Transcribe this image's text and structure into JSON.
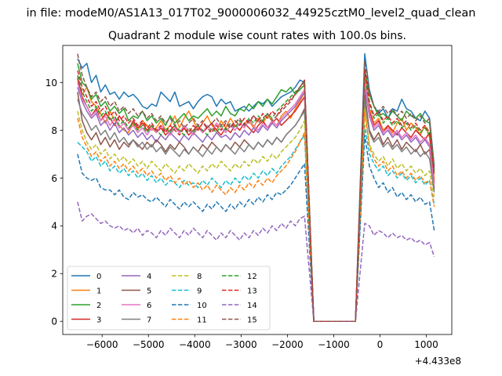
{
  "figure": {
    "suptitle": "in file: modeM0/AS1A13_017T02_9000006032_44925cztM0_level2_quad_clean",
    "title": "Quadrant 2 module wise count rates with 100.0s bins.",
    "offset_text": "+4.433e8"
  },
  "chart_data": {
    "type": "line",
    "title": "Quadrant 2 module wise count rates with 100.0s bins.",
    "xlabel": "",
    "ylabel": "",
    "x_offset": 443300000,
    "xlim": [
      -6850,
      1550
    ],
    "ylim": [
      -0.55,
      11.55
    ],
    "xticks": [
      -6000,
      -5000,
      -4000,
      -3000,
      -2000,
      -1000,
      0,
      1000
    ],
    "xtick_labels": [
      "−6000",
      "−5000",
      "−4000",
      "−3000",
      "−2000",
      "−1000",
      "0",
      "1000"
    ],
    "yticks": [
      0,
      2,
      4,
      6,
      8,
      10
    ],
    "ytick_labels": [
      "0",
      "2",
      "4",
      "6",
      "8",
      "10"
    ],
    "grid": false,
    "legend": {
      "location": "lower-left",
      "columns": 4
    },
    "segments": {
      "first": {
        "start": -6530,
        "end": -1630,
        "step": 100
      },
      "gap_fall": {
        "from": -1630,
        "to": -1430
      },
      "gap_zero": {
        "start": -1430,
        "end": -530
      },
      "gap_rise": {
        "from": -530,
        "to": -330
      },
      "second": {
        "start": -330,
        "end": 1170,
        "step": 100
      }
    },
    "series": [
      {
        "name": "0",
        "color": "#1f77b4",
        "dashed": false,
        "first": [
          11.0,
          10.6,
          10.8,
          10.0,
          10.3,
          9.6,
          9.9,
          9.5,
          9.6,
          9.3,
          9.6,
          9.4,
          9.5,
          9.3,
          9.0,
          8.9,
          9.1,
          9.0,
          9.6,
          9.4,
          9.2,
          9.6,
          9.0,
          9.1,
          9.2,
          8.9,
          9.2,
          9.4,
          9.5,
          9.4,
          9.0,
          9.3,
          9.1,
          9.2,
          8.8,
          8.9,
          9.0,
          8.8,
          9.0,
          9.2,
          9.1,
          9.3,
          9.0,
          9.2,
          9.4,
          9.5,
          9.6,
          9.8,
          10.1,
          10.0
        ],
        "second": [
          11.2,
          9.7,
          9.0,
          8.7,
          8.9,
          8.5,
          8.9,
          8.8,
          9.3,
          8.9,
          8.8,
          8.5,
          8.4,
          8.8,
          8.5,
          6.5
        ]
      },
      {
        "name": "1",
        "color": "#ff7f0e",
        "dashed": false,
        "first": [
          10.1,
          9.5,
          9.8,
          9.2,
          9.0,
          8.7,
          8.3,
          8.8,
          8.4,
          8.2,
          8.0,
          7.9,
          8.3,
          8.0,
          8.4,
          8.2,
          8.0,
          8.1,
          8.4,
          8.0,
          8.2,
          8.6,
          8.1,
          8.5,
          8.8,
          8.4,
          8.0,
          8.3,
          8.6,
          8.2,
          8.0,
          8.4,
          8.1,
          8.5,
          8.2,
          8.0,
          8.3,
          8.4,
          8.1,
          8.5,
          8.3,
          8.6,
          8.4,
          8.2,
          8.6,
          8.8,
          8.5,
          8.9,
          9.2,
          9.6
        ],
        "second": [
          10.2,
          8.9,
          8.3,
          8.5,
          8.0,
          8.2,
          7.9,
          8.3,
          8.5,
          8.0,
          8.3,
          8.1,
          7.8,
          8.2,
          7.7,
          5.9
        ]
      },
      {
        "name": "2",
        "color": "#2ca02c",
        "dashed": false,
        "first": [
          10.8,
          10.0,
          9.8,
          9.3,
          9.5,
          9.0,
          9.2,
          8.8,
          9.0,
          8.7,
          8.9,
          8.4,
          8.6,
          8.5,
          8.8,
          8.4,
          8.6,
          8.3,
          8.5,
          8.2,
          8.6,
          8.3,
          8.5,
          8.7,
          8.4,
          8.6,
          8.5,
          8.7,
          8.9,
          8.6,
          8.8,
          8.6,
          9.0,
          8.7,
          8.6,
          8.9,
          8.8,
          9.1,
          8.9,
          9.2,
          9.0,
          9.3,
          9.1,
          9.4,
          9.7,
          9.6,
          9.8,
          9.5,
          9.7,
          9.9
        ],
        "second": [
          10.5,
          9.5,
          9.0,
          8.6,
          8.7,
          8.5,
          8.8,
          8.6,
          8.4,
          8.8,
          8.6,
          8.5,
          8.7,
          8.4,
          8.3,
          6.3
        ]
      },
      {
        "name": "3",
        "color": "#d62728",
        "dashed": false,
        "first": [
          10.2,
          9.4,
          9.0,
          8.6,
          8.9,
          8.4,
          8.7,
          8.5,
          8.2,
          8.6,
          8.3,
          8.0,
          8.4,
          8.1,
          8.3,
          8.0,
          8.2,
          7.9,
          8.1,
          7.8,
          8.0,
          8.2,
          7.9,
          8.1,
          7.8,
          8.0,
          8.2,
          7.9,
          8.1,
          8.3,
          8.0,
          7.8,
          8.1,
          7.9,
          8.2,
          8.0,
          8.3,
          8.1,
          7.9,
          8.2,
          8.4,
          8.1,
          8.3,
          8.5,
          8.2,
          8.4,
          8.6,
          8.8,
          9.1,
          9.4
        ],
        "second": [
          10.0,
          8.8,
          8.2,
          8.4,
          7.9,
          8.2,
          8.0,
          7.8,
          8.1,
          7.9,
          7.7,
          8.0,
          7.8,
          7.6,
          7.9,
          5.8
        ]
      },
      {
        "name": "4",
        "color": "#9467bd",
        "dashed": false,
        "first": [
          9.8,
          9.2,
          8.8,
          8.5,
          8.7,
          8.2,
          8.4,
          8.0,
          8.3,
          7.9,
          8.1,
          7.8,
          8.0,
          7.7,
          7.9,
          7.6,
          7.8,
          7.5,
          7.8,
          7.6,
          7.9,
          7.7,
          7.5,
          7.8,
          7.6,
          7.9,
          7.7,
          7.5,
          7.8,
          7.6,
          7.9,
          7.7,
          7.8,
          7.6,
          7.9,
          7.7,
          8.0,
          7.8,
          8.1,
          7.9,
          8.2,
          8.0,
          8.3,
          8.1,
          8.4,
          8.6,
          8.8,
          9.0,
          9.3,
          9.6
        ],
        "second": [
          9.8,
          8.6,
          8.0,
          8.2,
          7.8,
          8.0,
          7.7,
          7.9,
          7.6,
          7.8,
          7.5,
          7.7,
          7.4,
          7.6,
          7.3,
          5.6
        ]
      },
      {
        "name": "5",
        "color": "#8c564b",
        "dashed": false,
        "first": [
          9.6,
          8.4,
          7.9,
          7.6,
          7.9,
          7.4,
          7.7,
          7.3,
          7.6,
          7.2,
          7.5,
          7.3,
          7.6,
          7.4,
          7.2,
          7.5,
          7.3,
          7.6,
          7.4,
          7.1,
          7.4,
          7.2,
          7.5,
          7.3,
          7.0,
          7.3,
          7.1,
          7.4,
          7.2,
          7.5,
          7.3,
          7.1,
          7.4,
          7.2,
          7.5,
          7.3,
          7.6,
          7.4,
          7.2,
          7.5,
          7.3,
          7.6,
          7.4,
          7.7,
          7.5,
          7.8,
          8.0,
          8.2,
          8.5,
          8.9
        ],
        "second": [
          9.5,
          8.0,
          7.6,
          7.9,
          7.4,
          7.7,
          7.3,
          7.6,
          7.2,
          7.5,
          7.3,
          7.1,
          7.4,
          7.0,
          7.2,
          5.5
        ]
      },
      {
        "name": "6",
        "color": "#e377c2",
        "dashed": false,
        "first": [
          10.0,
          9.3,
          9.0,
          8.6,
          8.8,
          8.4,
          8.6,
          8.2,
          8.5,
          8.1,
          8.3,
          8.0,
          8.2,
          7.9,
          8.1,
          7.8,
          8.1,
          7.9,
          8.2,
          8.0,
          7.8,
          8.1,
          7.9,
          8.2,
          8.0,
          7.8,
          8.1,
          7.9,
          8.2,
          8.0,
          8.3,
          8.1,
          7.9,
          8.2,
          8.0,
          8.3,
          8.1,
          8.4,
          8.2,
          8.0,
          8.3,
          8.1,
          8.4,
          8.2,
          8.5,
          8.7,
          8.9,
          9.1,
          9.4,
          9.7
        ],
        "second": [
          10.1,
          8.7,
          8.1,
          8.3,
          7.9,
          8.1,
          7.8,
          8.0,
          7.7,
          7.9,
          7.6,
          7.8,
          7.5,
          7.7,
          7.4,
          5.7
        ]
      },
      {
        "name": "7",
        "color": "#7f7f7f",
        "dashed": false,
        "first": [
          9.3,
          8.7,
          8.4,
          8.0,
          8.2,
          7.8,
          8.0,
          7.6,
          7.9,
          7.5,
          7.7,
          7.4,
          7.6,
          7.3,
          7.5,
          7.2,
          7.4,
          7.1,
          7.3,
          7.0,
          7.3,
          7.1,
          6.9,
          7.2,
          7.0,
          7.3,
          7.1,
          6.9,
          7.2,
          7.0,
          7.3,
          7.1,
          7.4,
          7.2,
          7.0,
          7.3,
          7.1,
          7.4,
          7.2,
          7.5,
          7.3,
          7.6,
          7.4,
          7.7,
          7.5,
          7.8,
          8.0,
          8.2,
          8.5,
          8.8
        ],
        "second": [
          9.2,
          7.9,
          7.5,
          7.7,
          7.3,
          7.5,
          7.2,
          7.4,
          7.1,
          7.3,
          7.0,
          7.2,
          6.9,
          7.1,
          6.8,
          5.4
        ]
      },
      {
        "name": "8",
        "color": "#bcbd22",
        "dashed": true,
        "first": [
          8.8,
          8.0,
          7.5,
          7.2,
          7.4,
          7.0,
          7.2,
          6.8,
          7.0,
          6.7,
          6.9,
          6.6,
          6.8,
          6.5,
          6.7,
          6.4,
          6.7,
          6.5,
          6.3,
          6.6,
          6.4,
          6.2,
          6.5,
          6.3,
          6.6,
          6.4,
          6.2,
          6.5,
          6.3,
          6.6,
          6.4,
          6.7,
          6.5,
          6.3,
          6.6,
          6.4,
          6.7,
          6.5,
          6.8,
          6.6,
          6.9,
          6.7,
          7.0,
          6.8,
          7.1,
          7.3,
          7.5,
          7.7,
          8.0,
          8.4
        ],
        "second": [
          8.9,
          7.4,
          7.0,
          6.7,
          6.9,
          6.5,
          6.8,
          6.4,
          6.6,
          6.3,
          6.5,
          6.2,
          6.4,
          6.1,
          6.3,
          5.2
        ]
      },
      {
        "name": "9",
        "color": "#17becf",
        "dashed": true,
        "first": [
          7.5,
          7.3,
          7.1,
          6.7,
          6.9,
          6.5,
          6.7,
          6.3,
          6.5,
          6.2,
          6.4,
          6.1,
          6.3,
          6.0,
          6.2,
          5.9,
          6.1,
          5.8,
          6.0,
          5.7,
          5.9,
          5.8,
          5.6,
          5.9,
          5.7,
          5.8,
          5.6,
          5.9,
          5.7,
          6.0,
          5.8,
          5.6,
          5.9,
          5.7,
          6.0,
          5.8,
          6.1,
          5.9,
          6.2,
          6.0,
          6.3,
          6.1,
          6.4,
          6.2,
          6.5,
          6.7,
          6.9,
          7.2,
          7.5,
          7.8
        ],
        "second": [
          8.2,
          7.0,
          6.6,
          6.3,
          6.5,
          6.1,
          6.3,
          6.0,
          6.2,
          5.9,
          6.1,
          5.8,
          6.0,
          5.7,
          5.9,
          4.9
        ]
      },
      {
        "name": "10",
        "color": "#1f77b4",
        "dashed": true,
        "first": [
          7.0,
          6.2,
          6.0,
          5.9,
          6.0,
          5.6,
          5.5,
          5.5,
          5.3,
          5.5,
          5.2,
          5.1,
          5.4,
          5.2,
          5.3,
          5.1,
          5.0,
          5.2,
          5.0,
          4.8,
          5.1,
          4.9,
          4.7,
          5.0,
          4.8,
          5.0,
          4.8,
          4.6,
          4.9,
          4.7,
          5.0,
          4.8,
          4.6,
          4.9,
          4.7,
          5.0,
          4.8,
          5.1,
          4.9,
          5.2,
          5.0,
          5.3,
          5.1,
          5.4,
          5.3,
          5.5,
          5.7,
          6.0,
          6.3,
          6.6
        ],
        "second": [
          7.8,
          6.5,
          6.0,
          5.6,
          5.8,
          5.4,
          5.6,
          5.2,
          5.4,
          5.1,
          5.3,
          5.0,
          5.2,
          4.9,
          5.0,
          3.8
        ]
      },
      {
        "name": "11",
        "color": "#ff7f0e",
        "dashed": true,
        "first": [
          8.5,
          7.7,
          7.3,
          6.9,
          7.1,
          6.7,
          6.9,
          6.5,
          6.7,
          6.4,
          6.6,
          6.3,
          6.5,
          6.2,
          6.4,
          6.1,
          6.3,
          6.0,
          6.2,
          5.9,
          6.1,
          5.8,
          6.0,
          5.7,
          5.9,
          5.6,
          5.8,
          5.5,
          5.7,
          5.4,
          5.7,
          5.5,
          5.3,
          5.6,
          5.4,
          5.7,
          5.5,
          5.8,
          5.6,
          5.9,
          5.7,
          6.0,
          5.8,
          6.1,
          6.3,
          6.5,
          6.8,
          7.1,
          7.5,
          7.9
        ],
        "second": [
          8.8,
          7.3,
          6.8,
          6.5,
          6.7,
          6.3,
          6.5,
          6.1,
          6.3,
          6.0,
          6.2,
          5.9,
          6.1,
          5.8,
          5.9,
          4.8
        ]
      },
      {
        "name": "12",
        "color": "#2ca02c",
        "dashed": true,
        "first": [
          10.3,
          9.6,
          9.2,
          8.8,
          9.0,
          8.6,
          8.8,
          8.4,
          8.6,
          8.2,
          8.4,
          8.1,
          8.3,
          8.0,
          8.2,
          7.9,
          8.2,
          8.0,
          7.8,
          8.1,
          7.9,
          8.2,
          8.0,
          7.8,
          8.1,
          7.9,
          8.2,
          8.0,
          7.8,
          8.1,
          7.9,
          8.2,
          8.0,
          8.3,
          8.1,
          8.4,
          8.2,
          8.5,
          8.3,
          8.6,
          8.4,
          8.7,
          8.5,
          8.8,
          9.0,
          9.2,
          9.4,
          9.6,
          9.8,
          10.0
        ],
        "second": [
          10.4,
          9.1,
          8.5,
          8.7,
          8.3,
          8.5,
          8.2,
          8.4,
          8.1,
          8.3,
          8.0,
          8.2,
          7.9,
          8.1,
          7.8,
          6.2
        ]
      },
      {
        "name": "13",
        "color": "#d62728",
        "dashed": true,
        "first": [
          10.5,
          9.8,
          9.4,
          9.0,
          9.2,
          8.8,
          9.0,
          8.6,
          8.8,
          8.4,
          8.6,
          8.3,
          8.5,
          8.2,
          8.4,
          8.1,
          8.3,
          8.0,
          8.2,
          7.9,
          8.2,
          8.0,
          7.8,
          8.1,
          7.9,
          8.2,
          8.0,
          8.3,
          8.1,
          7.9,
          8.2,
          8.0,
          8.3,
          8.1,
          8.4,
          8.2,
          8.5,
          8.3,
          8.6,
          8.4,
          8.7,
          8.5,
          8.8,
          8.6,
          8.9,
          9.1,
          9.3,
          9.5,
          9.8,
          10.1
        ],
        "second": [
          10.6,
          9.2,
          8.6,
          8.8,
          8.4,
          8.6,
          8.3,
          8.5,
          8.2,
          8.4,
          8.1,
          8.3,
          8.0,
          8.2,
          7.9,
          6.1
        ]
      },
      {
        "name": "14",
        "color": "#9467bd",
        "dashed": true,
        "first": [
          5.0,
          4.2,
          4.4,
          4.5,
          4.3,
          4.1,
          4.2,
          4.0,
          3.9,
          4.0,
          3.8,
          3.9,
          3.7,
          3.9,
          3.6,
          3.8,
          3.7,
          3.5,
          3.8,
          3.6,
          3.9,
          3.7,
          3.5,
          3.8,
          3.6,
          3.9,
          3.7,
          3.5,
          3.8,
          3.6,
          3.4,
          3.7,
          3.5,
          3.8,
          3.6,
          3.4,
          3.7,
          3.5,
          3.8,
          3.6,
          3.9,
          3.7,
          4.0,
          3.8,
          4.1,
          3.9,
          4.2,
          4.0,
          4.3,
          4.4
        ],
        "second": [
          4.1,
          4.0,
          3.6,
          3.8,
          3.7,
          3.5,
          3.7,
          3.5,
          3.6,
          3.4,
          3.5,
          3.3,
          3.4,
          3.2,
          3.3,
          2.7
        ]
      },
      {
        "name": "15",
        "color": "#8c564b",
        "dashed": true,
        "first": [
          11.2,
          10.3,
          9.8,
          9.4,
          9.6,
          9.2,
          9.4,
          9.0,
          9.2,
          8.8,
          9.0,
          8.7,
          8.9,
          8.6,
          8.8,
          8.5,
          8.7,
          8.4,
          8.6,
          8.3,
          8.5,
          8.2,
          8.4,
          8.1,
          8.3,
          8.5,
          8.2,
          8.4,
          8.1,
          8.3,
          8.5,
          8.2,
          8.4,
          8.1,
          8.3,
          8.5,
          8.2,
          8.4,
          8.6,
          8.3,
          8.5,
          8.7,
          8.4,
          8.6,
          8.8,
          9.0,
          9.2,
          9.5,
          9.8,
          10.1
        ],
        "second": [
          10.9,
          9.6,
          9.0,
          8.8,
          9.0,
          8.7,
          8.9,
          8.6,
          8.8,
          8.5,
          8.7,
          8.4,
          8.6,
          8.3,
          8.5,
          6.4
        ]
      }
    ]
  }
}
